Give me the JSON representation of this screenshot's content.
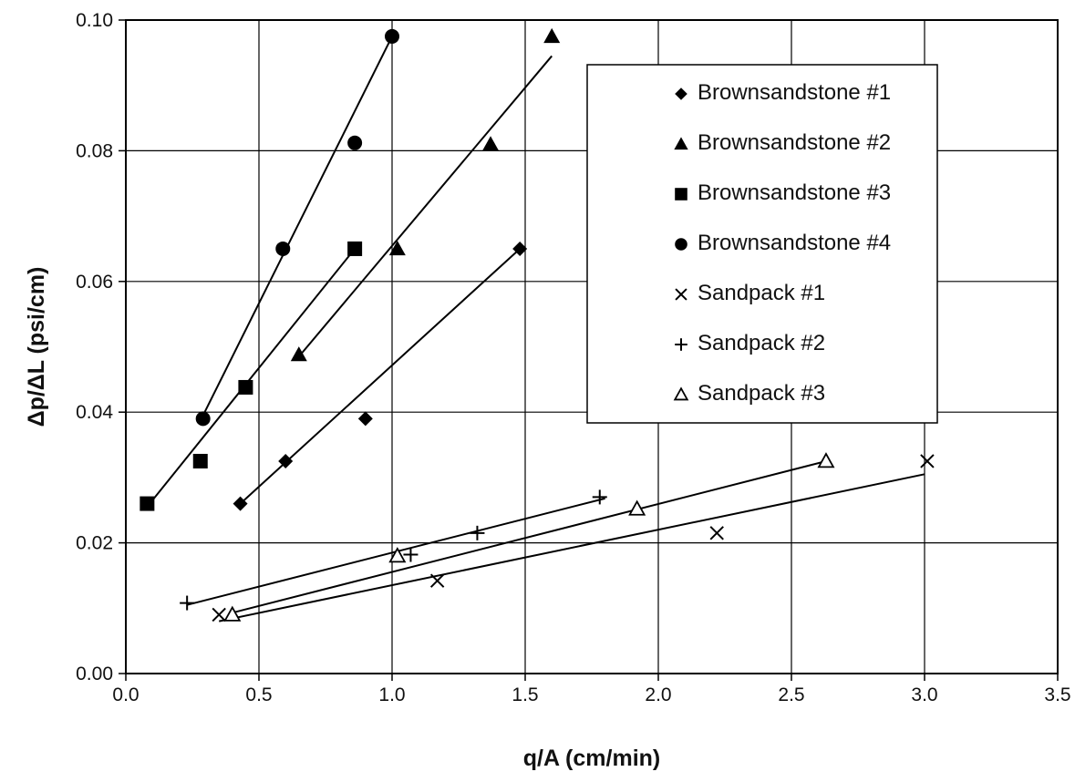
{
  "chart_data": {
    "type": "scatter",
    "xlabel": "q/A (cm/min)",
    "ylabel": "Δp/ΔL (psi/cm)",
    "xlim": [
      0,
      3.5
    ],
    "ylim": [
      0,
      0.1
    ],
    "x_ticks": [
      "0.0",
      "0.5",
      "1.0",
      "1.5",
      "2.0",
      "2.5",
      "3.0",
      "3.5"
    ],
    "y_ticks": [
      "0.00",
      "0.02",
      "0.04",
      "0.06",
      "0.08",
      "0.10"
    ],
    "grid": true,
    "legend_position": "top-right",
    "series": [
      {
        "name": "Brownsandstone #1",
        "marker": "diamond",
        "points": [
          [
            0.43,
            0.026
          ],
          [
            0.6,
            0.0325
          ],
          [
            0.9,
            0.039
          ],
          [
            1.48,
            0.065
          ]
        ],
        "fit": [
          [
            0.43,
            0.026
          ],
          [
            1.48,
            0.065
          ]
        ]
      },
      {
        "name": "Brownsandstone #2",
        "marker": "triangle",
        "points": [
          [
            0.65,
            0.0488
          ],
          [
            1.02,
            0.065
          ],
          [
            1.37,
            0.081
          ],
          [
            1.6,
            0.0975
          ]
        ],
        "fit": [
          [
            0.65,
            0.0485
          ],
          [
            1.6,
            0.0945
          ]
        ]
      },
      {
        "name": "Brownsandstone #3",
        "marker": "square",
        "points": [
          [
            0.08,
            0.026
          ],
          [
            0.28,
            0.0325
          ],
          [
            0.45,
            0.0438
          ],
          [
            0.86,
            0.065
          ]
        ],
        "fit": [
          [
            0.08,
            0.0255
          ],
          [
            0.86,
            0.065
          ]
        ]
      },
      {
        "name": "Brownsandstone #4",
        "marker": "circle",
        "points": [
          [
            0.29,
            0.039
          ],
          [
            0.59,
            0.065
          ],
          [
            0.86,
            0.0812
          ],
          [
            1.0,
            0.0975
          ]
        ],
        "fit": [
          [
            0.29,
            0.0395
          ],
          [
            1.0,
            0.0975
          ]
        ]
      },
      {
        "name": "Sandpack #1",
        "marker": "x",
        "points": [
          [
            0.35,
            0.009
          ],
          [
            1.17,
            0.0142
          ],
          [
            2.22,
            0.0215
          ],
          [
            3.01,
            0.0325
          ]
        ],
        "fit": [
          [
            0.35,
            0.008
          ],
          [
            3.0,
            0.0305
          ]
        ]
      },
      {
        "name": "Sandpack #2",
        "marker": "plus",
        "points": [
          [
            0.23,
            0.0108
          ],
          [
            1.07,
            0.0182
          ],
          [
            1.32,
            0.0215
          ],
          [
            1.78,
            0.027
          ]
        ],
        "fit": [
          [
            0.23,
            0.0105
          ],
          [
            1.8,
            0.0268
          ]
        ]
      },
      {
        "name": "Sandpack #3",
        "marker": "open-triangle",
        "points": [
          [
            0.4,
            0.009
          ],
          [
            1.02,
            0.018
          ],
          [
            1.92,
            0.0252
          ],
          [
            2.63,
            0.0325
          ]
        ],
        "fit": [
          [
            0.4,
            0.0093
          ],
          [
            2.63,
            0.0325
          ]
        ]
      }
    ]
  }
}
